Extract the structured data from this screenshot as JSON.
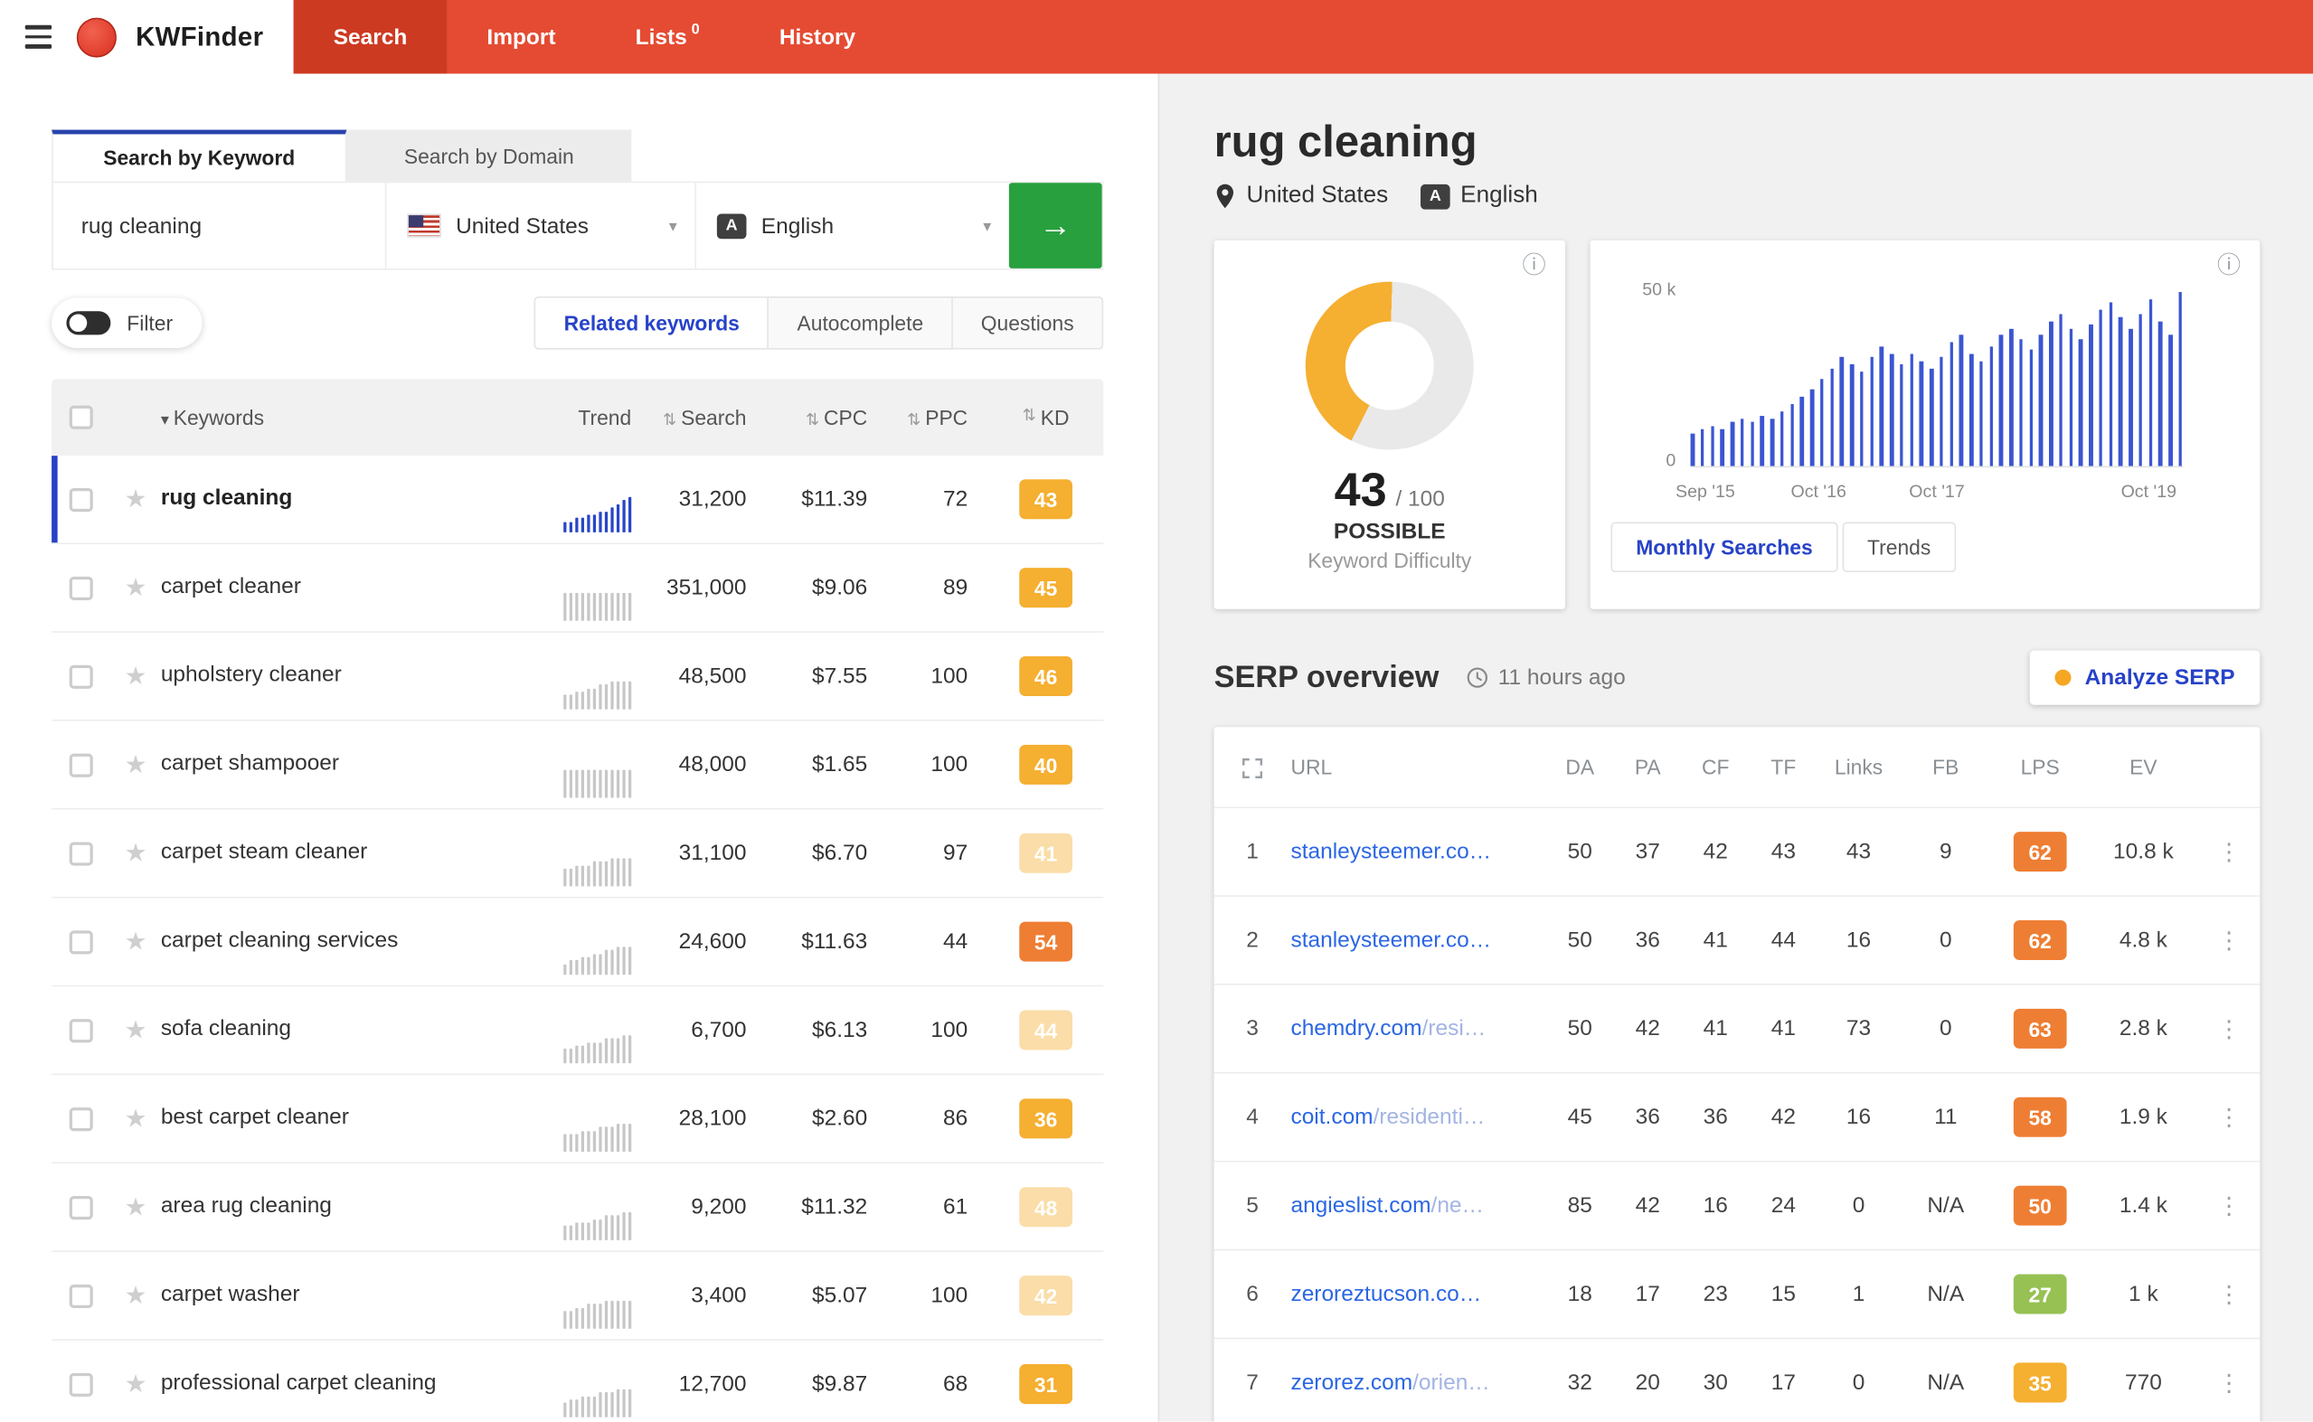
{
  "navbar": {
    "brand": "KWFinder",
    "items": [
      {
        "label": "Search",
        "active": true
      },
      {
        "label": "Import",
        "active": false
      },
      {
        "label": "Lists",
        "badge": "0",
        "active": false
      },
      {
        "label": "History",
        "active": false
      }
    ]
  },
  "icons": {
    "caret_down": "▾",
    "sort": "⇅",
    "arrow_right": "→",
    "star": "★",
    "kebab": "⋮",
    "info": "ⓘ",
    "language_glyph": "A"
  },
  "search_panel": {
    "mode_tabs": [
      {
        "label": "Search by Keyword",
        "active": true
      },
      {
        "label": "Search by Domain",
        "active": false
      }
    ],
    "keyword_input": "rug cleaning",
    "country": "United States",
    "language": "English",
    "filter_label": "Filter",
    "result_tabs": [
      {
        "label": "Related keywords",
        "active": true
      },
      {
        "label": "Autocomplete",
        "active": false
      },
      {
        "label": "Questions",
        "active": false
      }
    ],
    "table": {
      "columns": [
        {
          "key": "keywords",
          "label": "Keywords",
          "sort": "desc"
        },
        {
          "key": "trend",
          "label": "Trend"
        },
        {
          "key": "search",
          "label": "Search",
          "sortable": true
        },
        {
          "key": "cpc",
          "label": "CPC",
          "sortable": true
        },
        {
          "key": "ppc",
          "label": "PPC",
          "sortable": true
        },
        {
          "key": "kd",
          "label": "KD",
          "sortable": true
        }
      ],
      "rows": [
        {
          "keyword": "rug cleaning",
          "search": "31,200",
          "cpc": "$11.39",
          "ppc": "72",
          "kd": "43",
          "kd_color": "#f5af31",
          "kd_faded": false,
          "selected": true,
          "trend": [
            3,
            3,
            4,
            4,
            5,
            5,
            6,
            6,
            7,
            8,
            9,
            10
          ]
        },
        {
          "keyword": "carpet cleaner",
          "search": "351,000",
          "cpc": "$9.06",
          "ppc": "89",
          "kd": "45",
          "kd_color": "#f5af31",
          "kd_faded": false,
          "selected": false,
          "trend": [
            8,
            8,
            8,
            8,
            8,
            8,
            8,
            8,
            8,
            8,
            8,
            8
          ]
        },
        {
          "keyword": "upholstery cleaner",
          "search": "48,500",
          "cpc": "$7.55",
          "ppc": "100",
          "kd": "46",
          "kd_color": "#f5af31",
          "kd_faded": false,
          "selected": false,
          "trend": [
            4,
            4,
            5,
            5,
            6,
            6,
            7,
            7,
            8,
            8,
            8,
            8
          ]
        },
        {
          "keyword": "carpet shampooer",
          "search": "48,000",
          "cpc": "$1.65",
          "ppc": "100",
          "kd": "40",
          "kd_color": "#f5af31",
          "kd_faded": false,
          "selected": false,
          "trend": [
            8,
            8,
            8,
            8,
            8,
            8,
            8,
            8,
            8,
            8,
            8,
            8
          ]
        },
        {
          "keyword": "carpet steam cleaner",
          "search": "31,100",
          "cpc": "$6.70",
          "ppc": "97",
          "kd": "41",
          "kd_color": "#f5af31",
          "kd_faded": true,
          "selected": false,
          "trend": [
            5,
            5,
            6,
            6,
            6,
            7,
            7,
            7,
            8,
            8,
            8,
            8
          ]
        },
        {
          "keyword": "carpet cleaning services",
          "search": "24,600",
          "cpc": "$11.63",
          "ppc": "44",
          "kd": "54",
          "kd_color": "#ee7e33",
          "kd_faded": false,
          "selected": false,
          "trend": [
            3,
            4,
            4,
            5,
            5,
            6,
            6,
            7,
            7,
            8,
            8,
            8
          ]
        },
        {
          "keyword": "sofa cleaning",
          "search": "6,700",
          "cpc": "$6.13",
          "ppc": "100",
          "kd": "44",
          "kd_color": "#f5af31",
          "kd_faded": true,
          "selected": false,
          "trend": [
            4,
            4,
            5,
            5,
            6,
            6,
            6,
            7,
            7,
            7,
            8,
            8
          ]
        },
        {
          "keyword": "best carpet cleaner",
          "search": "28,100",
          "cpc": "$2.60",
          "ppc": "86",
          "kd": "36",
          "kd_color": "#f5af31",
          "kd_faded": false,
          "selected": false,
          "trend": [
            5,
            5,
            5,
            6,
            6,
            6,
            7,
            7,
            7,
            8,
            8,
            8
          ]
        },
        {
          "keyword": "area rug cleaning",
          "search": "9,200",
          "cpc": "$11.32",
          "ppc": "61",
          "kd": "48",
          "kd_color": "#f5af31",
          "kd_faded": true,
          "selected": false,
          "trend": [
            4,
            4,
            5,
            5,
            5,
            6,
            6,
            7,
            7,
            7,
            8,
            8
          ]
        },
        {
          "keyword": "carpet washer",
          "search": "3,400",
          "cpc": "$5.07",
          "ppc": "100",
          "kd": "42",
          "kd_color": "#f5af31",
          "kd_faded": true,
          "selected": false,
          "trend": [
            5,
            5,
            6,
            6,
            7,
            7,
            7,
            8,
            8,
            8,
            8,
            8
          ]
        },
        {
          "keyword": "professional carpet cleaning",
          "search": "12,700",
          "cpc": "$9.87",
          "ppc": "68",
          "kd": "31",
          "kd_color": "#f5af31",
          "kd_faded": false,
          "selected": false,
          "trend": [
            4,
            5,
            5,
            6,
            6,
            6,
            7,
            7,
            7,
            8,
            8,
            8
          ]
        }
      ]
    }
  },
  "detail": {
    "title": "rug cleaning",
    "country": "United States",
    "language": "English",
    "difficulty": {
      "score": "43",
      "out_of": "/ 100",
      "verdict": "POSSIBLE",
      "label": "Keyword Difficulty"
    },
    "chart": {
      "type": "bar",
      "y_max_label": "50 k",
      "y_min_label": "0",
      "ylim_k": [
        0,
        50
      ],
      "x_ticks": [
        {
          "label": "Sep '15",
          "pos": 3
        },
        {
          "label": "Oct '16",
          "pos": 26
        },
        {
          "label": "Oct '17",
          "pos": 50
        },
        {
          "label": "Oct '19",
          "pos": 93
        }
      ],
      "bars_k": [
        9,
        10,
        11,
        10,
        12,
        13,
        12,
        14,
        13,
        15,
        17,
        19,
        21,
        24,
        27,
        30,
        28,
        26,
        30,
        33,
        31,
        28,
        31,
        29,
        27,
        30,
        34,
        36,
        31,
        29,
        33,
        36,
        38,
        35,
        32,
        36,
        40,
        42,
        38,
        35,
        39,
        43,
        45,
        41,
        38,
        42,
        46,
        40,
        36,
        48
      ],
      "buttons": [
        {
          "label": "Monthly Searches",
          "active": true
        },
        {
          "label": "Trends",
          "active": false
        }
      ]
    },
    "serp": {
      "heading": "SERP overview",
      "updated": "11 hours ago",
      "analyze_button": "Analyze SERP",
      "columns": [
        "URL",
        "DA",
        "PA",
        "CF",
        "TF",
        "Links",
        "FB",
        "LPS",
        "EV"
      ],
      "rows": [
        {
          "rank": "1",
          "url_main": "stanleysteemer.co…",
          "url_rest": "",
          "da": "50",
          "pa": "37",
          "cf": "42",
          "tf": "43",
          "links": "43",
          "fb": "9",
          "lps": "62",
          "lps_color": "#ee7e33",
          "ev": "10.8 k"
        },
        {
          "rank": "2",
          "url_main": "stanleysteemer.co…",
          "url_rest": "",
          "da": "50",
          "pa": "36",
          "cf": "41",
          "tf": "44",
          "links": "16",
          "fb": "0",
          "lps": "62",
          "lps_color": "#ee7e33",
          "ev": "4.8 k"
        },
        {
          "rank": "3",
          "url_main": "chemdry.com",
          "url_rest": "/resi…",
          "da": "50",
          "pa": "42",
          "cf": "41",
          "tf": "41",
          "links": "73",
          "fb": "0",
          "lps": "63",
          "lps_color": "#ee7e33",
          "ev": "2.8 k"
        },
        {
          "rank": "4",
          "url_main": "coit.com",
          "url_rest": "/residenti…",
          "da": "45",
          "pa": "36",
          "cf": "36",
          "tf": "42",
          "links": "16",
          "fb": "11",
          "lps": "58",
          "lps_color": "#ee7e33",
          "ev": "1.9 k"
        },
        {
          "rank": "5",
          "url_main": "angieslist.com",
          "url_rest": "/ne…",
          "da": "85",
          "pa": "42",
          "cf": "16",
          "tf": "24",
          "links": "0",
          "fb": "N/A",
          "lps": "50",
          "lps_color": "#ee7e33",
          "ev": "1.4 k"
        },
        {
          "rank": "6",
          "url_main": "zeroreztucson.co…",
          "url_rest": "",
          "da": "18",
          "pa": "17",
          "cf": "23",
          "tf": "15",
          "links": "1",
          "fb": "N/A",
          "lps": "27",
          "lps_color": "#97c153",
          "ev": "1 k"
        },
        {
          "rank": "7",
          "url_main": "zerorez.com",
          "url_rest": "/orien…",
          "da": "32",
          "pa": "20",
          "cf": "30",
          "tf": "17",
          "links": "0",
          "fb": "N/A",
          "lps": "35",
          "lps_color": "#f5af31",
          "ev": "770"
        }
      ]
    }
  },
  "colors": {
    "accent_red": "#e54b33",
    "accent_blue": "#2742c8",
    "link_blue": "#2b66e3",
    "kd_yellow": "#f5af31",
    "kd_orange": "#ee7e33",
    "lps_green": "#97c153",
    "go_green": "#28a03e",
    "spark_selected": "#2946c8",
    "spark_default": "#c7c7c7"
  }
}
